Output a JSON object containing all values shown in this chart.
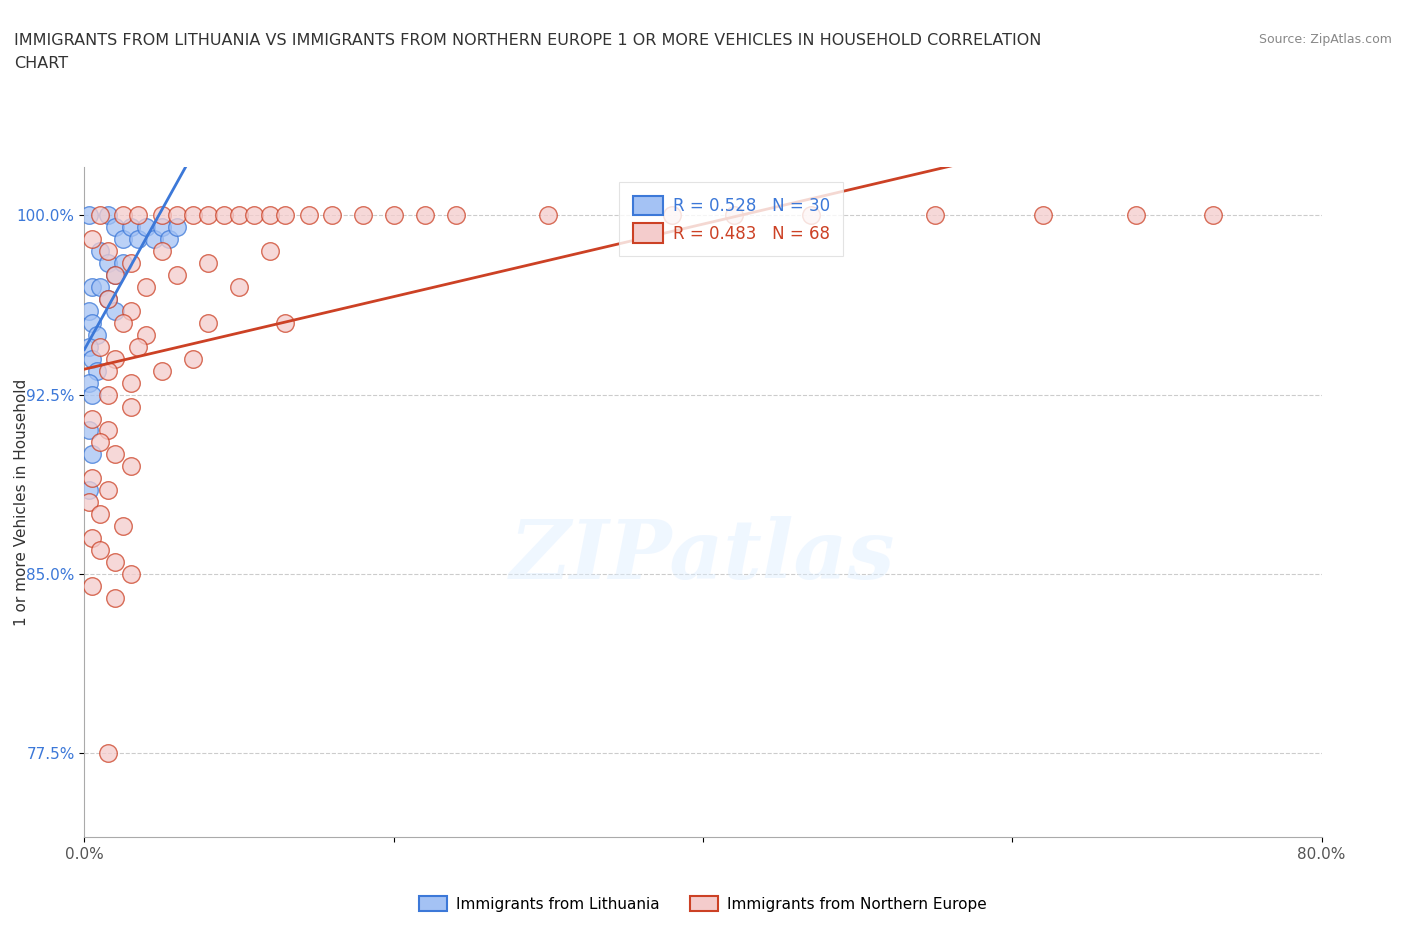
{
  "title_line1": "IMMIGRANTS FROM LITHUANIA VS IMMIGRANTS FROM NORTHERN EUROPE 1 OR MORE VEHICLES IN HOUSEHOLD CORRELATION",
  "title_line2": "CHART",
  "source": "Source: ZipAtlas.com",
  "ylabel": "1 or more Vehicles in Household",
  "yticks": [
    77.5,
    85.0,
    92.5,
    100.0
  ],
  "ytick_labels": [
    "77.5%",
    "85.0%",
    "92.5%",
    "100.0%"
  ],
  "legend1_r": "0.528",
  "legend1_n": "30",
  "legend2_r": "0.483",
  "legend2_n": "68",
  "color_blue": "#a4c2f4",
  "color_pink": "#f4cccc",
  "edge_blue": "#3c78d8",
  "edge_pink": "#cc4125",
  "line_blue": "#3c78d8",
  "line_pink": "#cc4125",
  "text_blue": "#3c78d8",
  "bg_color": "#ffffff",
  "grid_color": "#b7b7b7",
  "xlim": [
    0,
    80
  ],
  "ylim": [
    74,
    102
  ],
  "scatter_blue": [
    [
      0.3,
      100.0
    ],
    [
      1.5,
      100.0
    ],
    [
      2.0,
      99.5
    ],
    [
      2.5,
      99.0
    ],
    [
      3.0,
      99.5
    ],
    [
      3.5,
      99.0
    ],
    [
      4.0,
      99.5
    ],
    [
      4.5,
      99.0
    ],
    [
      5.0,
      99.5
    ],
    [
      5.5,
      99.0
    ],
    [
      6.0,
      99.5
    ],
    [
      1.0,
      98.5
    ],
    [
      1.5,
      98.0
    ],
    [
      2.0,
      97.5
    ],
    [
      2.5,
      98.0
    ],
    [
      0.5,
      97.0
    ],
    [
      1.0,
      97.0
    ],
    [
      1.5,
      96.5
    ],
    [
      2.0,
      96.0
    ],
    [
      0.3,
      96.0
    ],
    [
      0.5,
      95.5
    ],
    [
      0.8,
      95.0
    ],
    [
      0.3,
      94.5
    ],
    [
      0.5,
      94.0
    ],
    [
      0.8,
      93.5
    ],
    [
      0.3,
      93.0
    ],
    [
      0.5,
      92.5
    ],
    [
      0.3,
      91.0
    ],
    [
      0.5,
      90.0
    ],
    [
      0.3,
      88.5
    ]
  ],
  "scatter_pink": [
    [
      1.0,
      100.0
    ],
    [
      2.5,
      100.0
    ],
    [
      3.5,
      100.0
    ],
    [
      5.0,
      100.0
    ],
    [
      6.0,
      100.0
    ],
    [
      7.0,
      100.0
    ],
    [
      8.0,
      100.0
    ],
    [
      9.0,
      100.0
    ],
    [
      10.0,
      100.0
    ],
    [
      11.0,
      100.0
    ],
    [
      12.0,
      100.0
    ],
    [
      13.0,
      100.0
    ],
    [
      14.5,
      100.0
    ],
    [
      16.0,
      100.0
    ],
    [
      18.0,
      100.0
    ],
    [
      20.0,
      100.0
    ],
    [
      22.0,
      100.0
    ],
    [
      24.0,
      100.0
    ],
    [
      30.0,
      100.0
    ],
    [
      38.0,
      100.0
    ],
    [
      42.0,
      100.0
    ],
    [
      47.0,
      100.0
    ],
    [
      55.0,
      100.0
    ],
    [
      62.0,
      100.0
    ],
    [
      68.0,
      100.0
    ],
    [
      73.0,
      100.0
    ],
    [
      0.5,
      99.0
    ],
    [
      1.5,
      98.5
    ],
    [
      3.0,
      98.0
    ],
    [
      5.0,
      98.5
    ],
    [
      8.0,
      98.0
    ],
    [
      12.0,
      98.5
    ],
    [
      2.0,
      97.5
    ],
    [
      4.0,
      97.0
    ],
    [
      6.0,
      97.5
    ],
    [
      10.0,
      97.0
    ],
    [
      1.5,
      96.5
    ],
    [
      3.0,
      96.0
    ],
    [
      2.5,
      95.5
    ],
    [
      4.0,
      95.0
    ],
    [
      8.0,
      95.5
    ],
    [
      13.0,
      95.5
    ],
    [
      1.0,
      94.5
    ],
    [
      2.0,
      94.0
    ],
    [
      3.5,
      94.5
    ],
    [
      1.5,
      93.5
    ],
    [
      3.0,
      93.0
    ],
    [
      5.0,
      93.5
    ],
    [
      7.0,
      94.0
    ],
    [
      1.5,
      92.5
    ],
    [
      3.0,
      92.0
    ],
    [
      0.5,
      91.5
    ],
    [
      1.5,
      91.0
    ],
    [
      1.0,
      90.5
    ],
    [
      2.0,
      90.0
    ],
    [
      3.0,
      89.5
    ],
    [
      0.5,
      89.0
    ],
    [
      1.5,
      88.5
    ],
    [
      0.3,
      88.0
    ],
    [
      1.0,
      87.5
    ],
    [
      2.5,
      87.0
    ],
    [
      0.5,
      86.5
    ],
    [
      1.0,
      86.0
    ],
    [
      2.0,
      85.5
    ],
    [
      3.0,
      85.0
    ],
    [
      0.5,
      84.5
    ],
    [
      2.0,
      84.0
    ],
    [
      1.5,
      77.5
    ]
  ]
}
